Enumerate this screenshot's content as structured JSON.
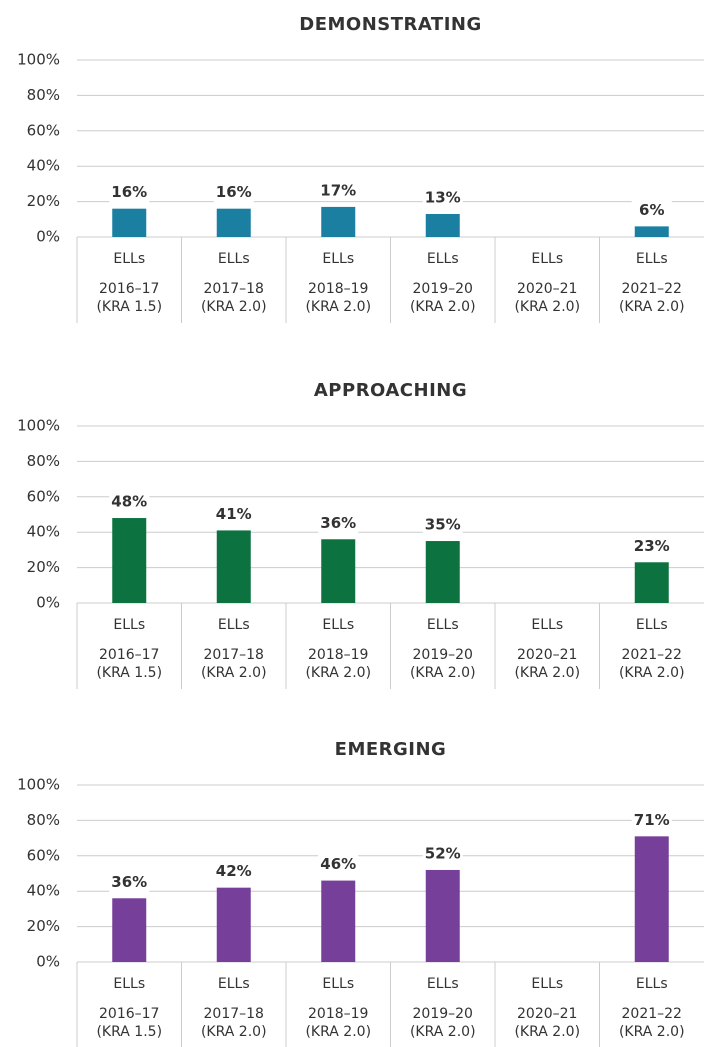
{
  "chart_data": [
    {
      "type": "bar",
      "title": "DEMONSTRATING",
      "color": "#1a7fa0",
      "categories": [
        [
          "ELLs",
          "2016–17",
          "(KRA 1.5)"
        ],
        [
          "ELLs",
          "2017–18",
          "(KRA 2.0)"
        ],
        [
          "ELLs",
          "2018–19",
          "(KRA 2.0)"
        ],
        [
          "ELLs",
          "2019–20",
          "(KRA 2.0)"
        ],
        [
          "ELLs",
          "2020–21",
          "(KRA 2.0)"
        ],
        [
          "ELLs",
          "2021–22",
          "(KRA 2.0)"
        ]
      ],
      "values": [
        16,
        16,
        17,
        13,
        null,
        6
      ],
      "value_labels": [
        "16%",
        "16%",
        "17%",
        "13%",
        null,
        "6%"
      ],
      "ylim": [
        0,
        100
      ],
      "yticks": [
        {
          "value": 0,
          "label": "0%"
        },
        {
          "value": 20,
          "label": "20%"
        },
        {
          "value": 40,
          "label": "40%"
        },
        {
          "value": 60,
          "label": "60%"
        },
        {
          "value": 80,
          "label": "80%"
        },
        {
          "value": 100,
          "label": "100%"
        }
      ],
      "grid": true
    },
    {
      "type": "bar",
      "title": "APPROACHING",
      "color": "#0b7240",
      "categories": [
        [
          "ELLs",
          "2016–17",
          "(KRA 1.5)"
        ],
        [
          "ELLs",
          "2017–18",
          "(KRA 2.0)"
        ],
        [
          "ELLs",
          "2018–19",
          "(KRA 2.0)"
        ],
        [
          "ELLs",
          "2019–20",
          "(KRA 2.0)"
        ],
        [
          "ELLs",
          "2020–21",
          "(KRA 2.0)"
        ],
        [
          "ELLs",
          "2021–22",
          "(KRA 2.0)"
        ]
      ],
      "values": [
        48,
        41,
        36,
        35,
        null,
        23
      ],
      "value_labels": [
        "48%",
        "41%",
        "36%",
        "35%",
        null,
        "23%"
      ],
      "ylim": [
        0,
        100
      ],
      "yticks": [
        {
          "value": 0,
          "label": "0%"
        },
        {
          "value": 20,
          "label": "20%"
        },
        {
          "value": 40,
          "label": "40%"
        },
        {
          "value": 60,
          "label": "60%"
        },
        {
          "value": 80,
          "label": "80%"
        },
        {
          "value": 100,
          "label": "100%"
        }
      ],
      "grid": true
    },
    {
      "type": "bar",
      "title": "EMERGING",
      "color": "#76409a",
      "categories": [
        [
          "ELLs",
          "2016–17",
          "(KRA 1.5)"
        ],
        [
          "ELLs",
          "2017–18",
          "(KRA 2.0)"
        ],
        [
          "ELLs",
          "2018–19",
          "(KRA 2.0)"
        ],
        [
          "ELLs",
          "2019–20",
          "(KRA 2.0)"
        ],
        [
          "ELLs",
          "2020–21",
          "(KRA 2.0)"
        ],
        [
          "ELLs",
          "2021–22",
          "(KRA 2.0)"
        ]
      ],
      "values": [
        36,
        42,
        46,
        52,
        null,
        71
      ],
      "value_labels": [
        "36%",
        "42%",
        "46%",
        "52%",
        null,
        "71%"
      ],
      "ylim": [
        0,
        100
      ],
      "yticks": [
        {
          "value": 0,
          "label": "0%"
        },
        {
          "value": 20,
          "label": "20%"
        },
        {
          "value": 40,
          "label": "40%"
        },
        {
          "value": 60,
          "label": "60%"
        },
        {
          "value": 80,
          "label": "80%"
        },
        {
          "value": 100,
          "label": "100%"
        }
      ],
      "grid": true
    }
  ]
}
